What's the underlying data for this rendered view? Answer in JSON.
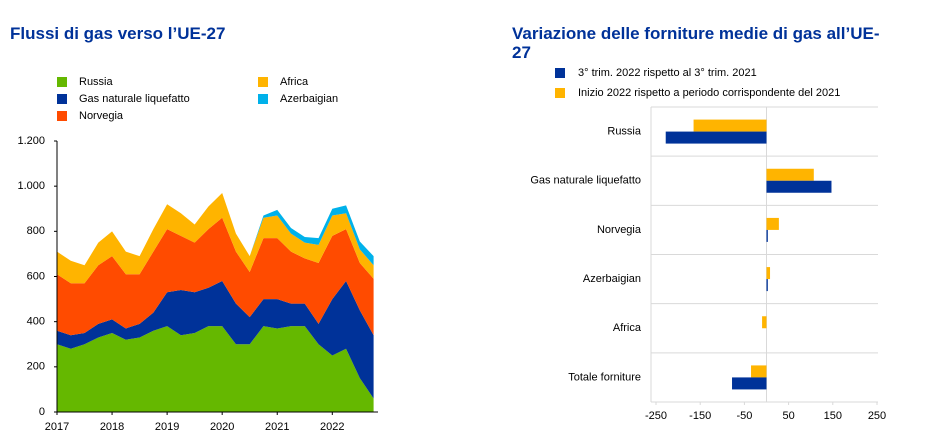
{
  "chart_data": [
    {
      "type": "area",
      "stacked": true,
      "title": "Flussi di gas verso l’UE-27",
      "x": [
        2017,
        2017.25,
        2017.5,
        2017.75,
        2018,
        2018.25,
        2018.5,
        2018.75,
        2019,
        2019.25,
        2019.5,
        2019.75,
        2020,
        2020.25,
        2020.5,
        2020.75,
        2021,
        2021.25,
        2021.5,
        2021.75,
        2022,
        2022.25,
        2022.5,
        2022.75
      ],
      "xlim": [
        2017,
        2022.83
      ],
      "xticks": [
        2017,
        2018,
        2019,
        2020,
        2021,
        2022
      ],
      "ylim": [
        0,
        1200
      ],
      "yticks": [
        0,
        200,
        400,
        600,
        800,
        {
          "value": 1000,
          "label": "1.000"
        },
        {
          "value": 1200,
          "label": "1.200"
        }
      ],
      "series": [
        {
          "name": "Russia",
          "color": "#65b800",
          "values": [
            300,
            280,
            300,
            330,
            350,
            320,
            330,
            360,
            380,
            340,
            350,
            380,
            380,
            300,
            300,
            380,
            370,
            380,
            380,
            300,
            250,
            280,
            150,
            60
          ]
        },
        {
          "name": "Gas naturale liquefatto",
          "color": "#003299",
          "values": [
            60,
            60,
            50,
            60,
            60,
            50,
            60,
            80,
            150,
            200,
            180,
            170,
            200,
            180,
            120,
            120,
            130,
            100,
            100,
            90,
            250,
            300,
            300,
            280
          ]
        },
        {
          "name": "Norvegia",
          "color": "#ff4b00",
          "values": [
            250,
            230,
            220,
            260,
            280,
            240,
            220,
            270,
            280,
            240,
            220,
            260,
            280,
            230,
            200,
            270,
            270,
            230,
            200,
            270,
            280,
            230,
            210,
            250
          ]
        },
        {
          "name": "Africa",
          "color": "#ffb400",
          "values": [
            100,
            100,
            80,
            100,
            110,
            100,
            80,
            100,
            110,
            100,
            80,
            100,
            110,
            80,
            70,
            90,
            100,
            80,
            70,
            80,
            90,
            70,
            60,
            60
          ]
        },
        {
          "name": "Azerbaigian",
          "color": "#00b1ea",
          "values": [
            0,
            0,
            0,
            0,
            0,
            0,
            0,
            0,
            0,
            0,
            0,
            0,
            0,
            0,
            0,
            10,
            25,
            25,
            25,
            30,
            30,
            35,
            35,
            40
          ]
        }
      ]
    },
    {
      "type": "bar",
      "orientation": "horizontal",
      "title": "Variazione delle forniture medie di gas all’UE-27",
      "categories": [
        "Russia",
        "Gas naturale liquefatto",
        "Norvegia",
        "Azerbaigian",
        "Africa",
        "Totale forniture"
      ],
      "xlim": [
        -250,
        250
      ],
      "xticks": [
        -250,
        -150,
        -50,
        50,
        150,
        250
      ],
      "series": [
        {
          "name": "3° trim. 2022 rispetto al 3° trim. 2021",
          "color": "#003299",
          "values": [
            -228,
            147,
            3,
            3,
            0,
            -78
          ]
        },
        {
          "name": "Inizio 2022 rispetto a periodo corrispondente del 2021",
          "color": "#ffb400",
          "values": [
            -165,
            107,
            28,
            8,
            -10,
            -35
          ]
        }
      ]
    }
  ]
}
